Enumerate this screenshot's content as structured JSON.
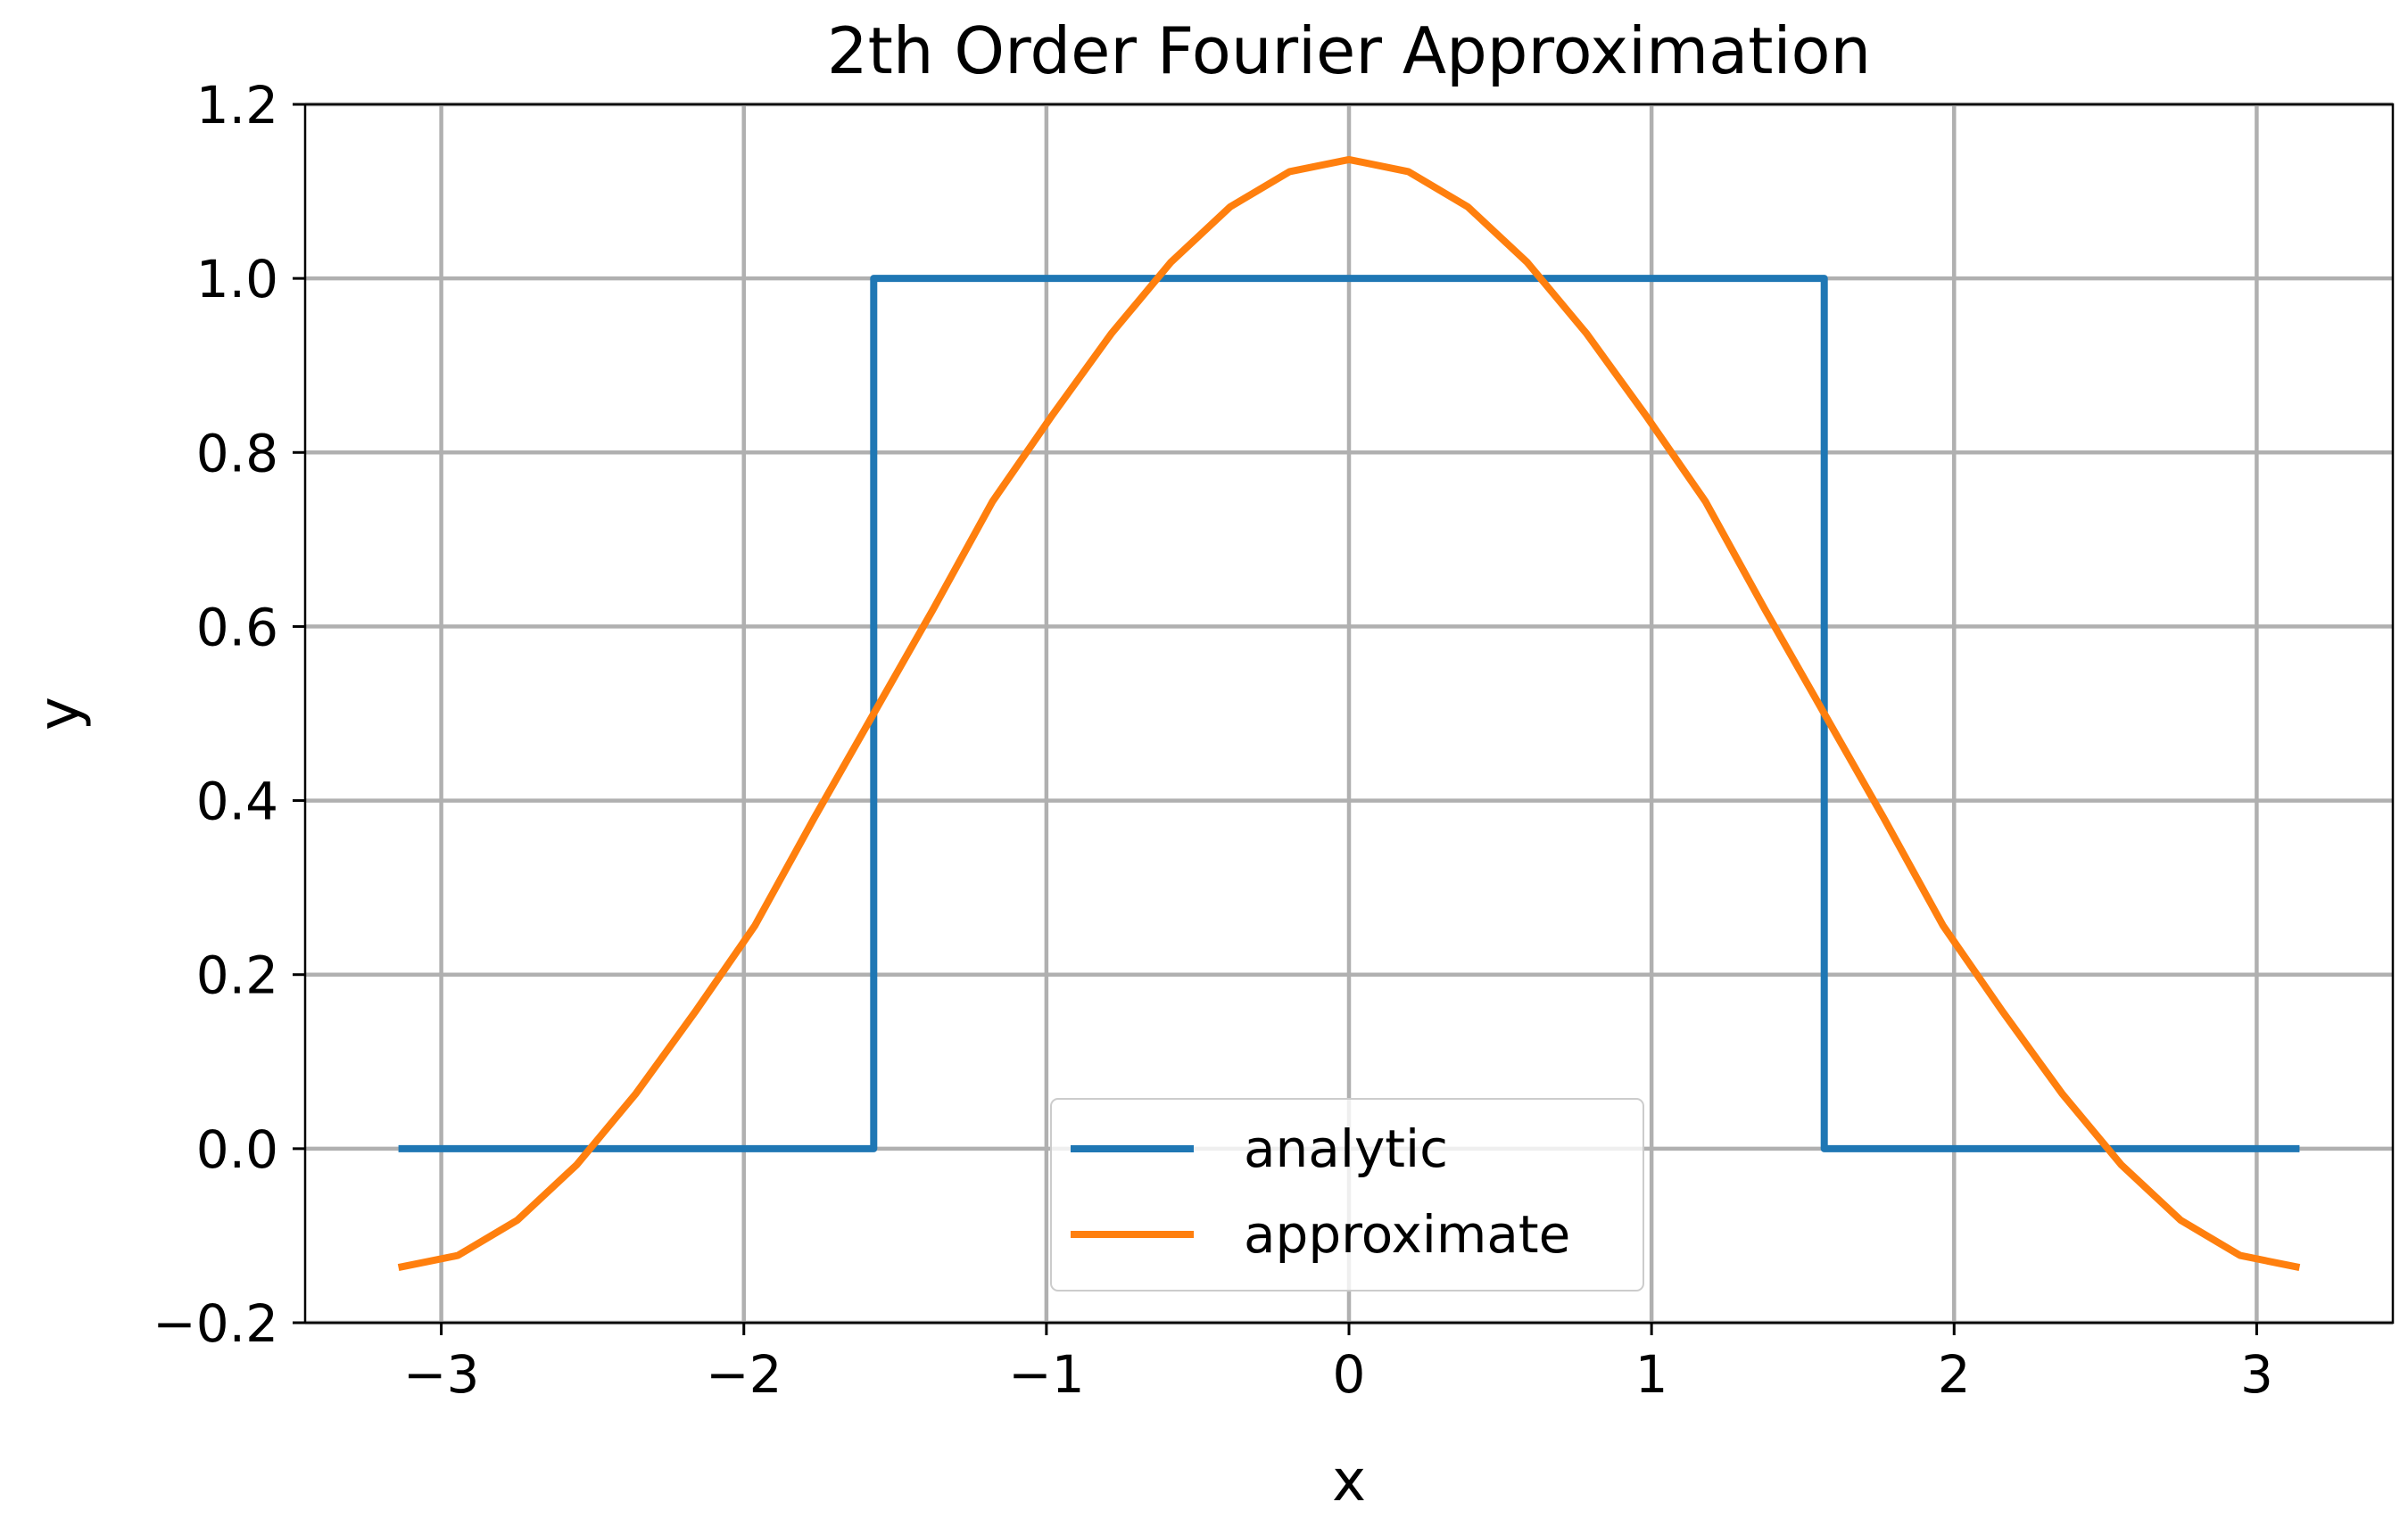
{
  "chart_data": {
    "type": "line",
    "title": "2th Order Fourier Approximation",
    "xlabel": "x",
    "ylabel": "y",
    "xlim": [
      -3.45,
      3.45
    ],
    "ylim": [
      -0.2,
      1.2
    ],
    "grid": true,
    "legend_position": "lower-center",
    "x_ticks": [
      -3,
      -2,
      -1,
      0,
      1,
      2,
      3
    ],
    "x_tick_labels": [
      "−3",
      "−2",
      "−1",
      "0",
      "1",
      "2",
      "3"
    ],
    "y_ticks": [
      -0.2,
      0.0,
      0.2,
      0.4,
      0.6,
      0.8,
      1.0,
      1.2
    ],
    "y_tick_labels": [
      "−0.2",
      "0.0",
      "0.2",
      "0.4",
      "0.6",
      "0.8",
      "1.0",
      "1.2"
    ],
    "series": [
      {
        "name": "analytic",
        "color": "#1f77b4",
        "x": [
          -3.1416,
          -1.5708,
          -1.5708,
          1.5708,
          1.5708,
          3.1416
        ],
        "y": [
          0.0,
          0.0,
          1.0,
          1.0,
          0.0,
          0.0
        ]
      },
      {
        "name": "approximate",
        "color": "#ff7f0e",
        "x": [
          -3.1416,
          -2.9452,
          -2.7489,
          -2.5525,
          -2.3562,
          -2.1598,
          -1.9635,
          -1.7671,
          -1.5708,
          -1.3744,
          -1.1781,
          -0.9817,
          -0.7854,
          -0.589,
          -0.3927,
          -0.1963,
          0.0,
          0.1963,
          0.3927,
          0.589,
          0.7854,
          0.9817,
          1.1781,
          1.3744,
          1.5708,
          1.7671,
          1.9635,
          2.1598,
          2.3562,
          2.5525,
          2.7489,
          2.9452,
          3.1416
        ],
        "y": [
          -0.1366,
          -0.1227,
          -0.0822,
          -0.0185,
          0.0635,
          0.1577,
          0.2563,
          0.3802,
          0.5,
          0.6198,
          0.7437,
          0.8423,
          0.9365,
          1.0185,
          1.0822,
          1.1227,
          1.1366,
          1.1227,
          1.0822,
          1.0185,
          0.9365,
          0.8423,
          0.7437,
          0.6198,
          0.5,
          0.3802,
          0.2563,
          0.1577,
          0.0635,
          -0.0185,
          -0.0822,
          -0.1227,
          -0.1366
        ]
      }
    ]
  }
}
